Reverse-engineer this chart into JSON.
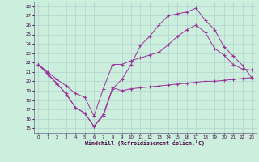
{
  "bg_color": "#cceedd",
  "line_color": "#993399",
  "grid_color": "#aacccc",
  "xlim": [
    -0.5,
    23.5
  ],
  "ylim": [
    14.5,
    28.5
  ],
  "xticks": [
    0,
    1,
    2,
    3,
    4,
    5,
    6,
    7,
    8,
    9,
    10,
    11,
    12,
    13,
    14,
    15,
    16,
    17,
    18,
    19,
    20,
    21,
    22,
    23
  ],
  "yticks": [
    15,
    16,
    17,
    18,
    19,
    20,
    21,
    22,
    23,
    24,
    25,
    26,
    27,
    28
  ],
  "xlabel": "Windchill (Refroidissement éolien,°C)",
  "line1_x": [
    0,
    1,
    2,
    3,
    4,
    5,
    6,
    7,
    8,
    9,
    10,
    11,
    12,
    13,
    14,
    15,
    16,
    17,
    18,
    19,
    20,
    21,
    22,
    23
  ],
  "line1_y": [
    21.8,
    20.9,
    19.7,
    18.7,
    17.2,
    16.6,
    15.2,
    16.5,
    19.3,
    19.0,
    19.2,
    19.3,
    19.4,
    19.5,
    19.6,
    19.7,
    19.8,
    19.9,
    20.0,
    20.0,
    20.1,
    20.2,
    20.3,
    20.4
  ],
  "line2_x": [
    0,
    1,
    2,
    3,
    4,
    5,
    6,
    7,
    8,
    9,
    10,
    11,
    12,
    13,
    14,
    15,
    16,
    17,
    18,
    19,
    20,
    21,
    22,
    23
  ],
  "line2_y": [
    21.8,
    21.0,
    20.2,
    19.5,
    18.7,
    18.3,
    16.3,
    19.2,
    21.8,
    21.8,
    22.2,
    22.5,
    22.8,
    23.1,
    23.9,
    24.8,
    25.5,
    26.0,
    25.2,
    23.5,
    22.8,
    21.8,
    21.3,
    21.2
  ],
  "line3_x": [
    0,
    1,
    2,
    3,
    4,
    5,
    6,
    7,
    8,
    9,
    10,
    11,
    12,
    13,
    14,
    15,
    16,
    17,
    18,
    19,
    20,
    21,
    22,
    23
  ],
  "line3_y": [
    21.8,
    20.7,
    19.8,
    18.6,
    17.2,
    16.6,
    15.2,
    16.3,
    19.2,
    20.2,
    21.8,
    23.8,
    24.8,
    26.0,
    27.0,
    27.2,
    27.4,
    27.8,
    26.5,
    25.5,
    23.7,
    22.7,
    21.7,
    20.4
  ]
}
